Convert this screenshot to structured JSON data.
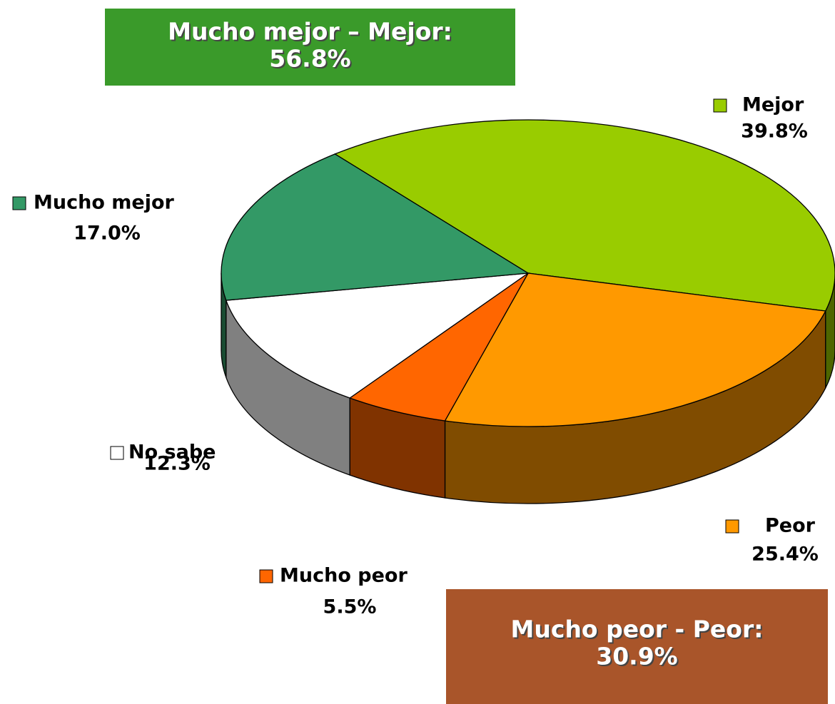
{
  "chart_data": {
    "type": "pie",
    "categories": [
      "Mejor",
      "Peor",
      "Mucho peor",
      "No sabe",
      "Mucho mejor"
    ],
    "values": [
      39.8,
      25.4,
      5.5,
      12.3,
      17.0
    ],
    "value_labels": [
      "39.8%",
      "25.4%",
      "5.5%",
      "12.3%",
      "17.0%"
    ],
    "colors": [
      "#99cc00",
      "#ff9900",
      "#ff6600",
      "#ffffff",
      "#339966"
    ],
    "side_colors": [
      "#4d6600",
      "#804c00",
      "#803300",
      "#808080",
      "#1a4d33"
    ],
    "annotations": [
      {
        "lines": [
          "Mucho mejor – Mejor:",
          "56.8%"
        ],
        "color": "#3a9a2a"
      },
      {
        "lines": [
          "Mucho peor - Peor:",
          "30.9%"
        ],
        "color": "#a9552a"
      }
    ]
  }
}
